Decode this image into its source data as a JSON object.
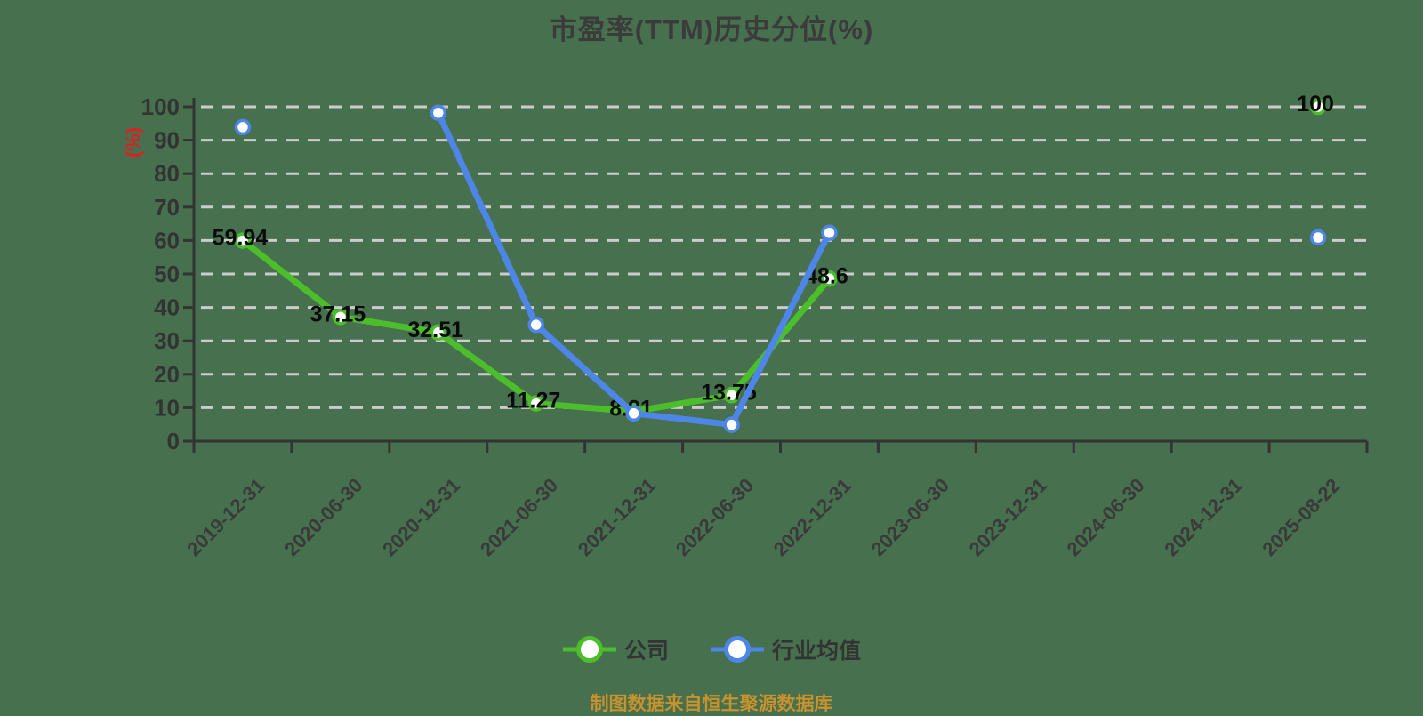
{
  "title": "市盈率(TTM)历史分位(%)",
  "source_note": "制图数据来自恒生聚源数据库",
  "y_axis_unit_label": "(%)",
  "colors": {
    "background": "#46704E",
    "grid": "#cccccc",
    "axis": "#333333",
    "tick_text": "#333333",
    "x_label_text": "#3a3a3a",
    "data_label_text": "#0a0a0a",
    "unit_label_red": "#e01f1f",
    "company_green": "#4cbe2c",
    "industry_blue": "#4e86e8",
    "point_fill": "#ffffff"
  },
  "chart_data": {
    "type": "line",
    "title": "市盈率(TTM)历史分位(%)",
    "ylabel": "(%)",
    "ylim": [
      0,
      100
    ],
    "y_ticks": [
      0,
      10,
      20,
      30,
      40,
      50,
      60,
      70,
      80,
      90,
      100
    ],
    "grid": "dashed-horizontal",
    "legend_position": "bottom",
    "categories": [
      "2019-12-31",
      "2020-06-30",
      "2020-12-31",
      "2021-06-30",
      "2021-12-31",
      "2022-06-30",
      "2022-12-31",
      "2023-06-30",
      "2023-12-31",
      "2024-06-30",
      "2024-12-31",
      "2025-08-22"
    ],
    "series": [
      {
        "key": "company",
        "name": "公司",
        "color": "#4cbe2c",
        "values": [
          59.94,
          37.15,
          32.51,
          11.27,
          8.91,
          13.75,
          48.6,
          null,
          null,
          null,
          null,
          100
        ],
        "labels": [
          "59.94",
          "37.15",
          "32.51",
          "11.27",
          "8.91",
          "13.75",
          "48.6",
          null,
          null,
          null,
          null,
          "100"
        ]
      },
      {
        "key": "industry",
        "name": "行业均值",
        "color": "#4e86e8",
        "values": [
          93.9,
          null,
          98.2,
          34.8,
          8.3,
          4.9,
          62.3,
          null,
          null,
          null,
          null,
          60.9
        ],
        "labels": [
          null,
          null,
          null,
          null,
          null,
          null,
          null,
          null,
          null,
          null,
          null,
          null
        ]
      }
    ]
  }
}
